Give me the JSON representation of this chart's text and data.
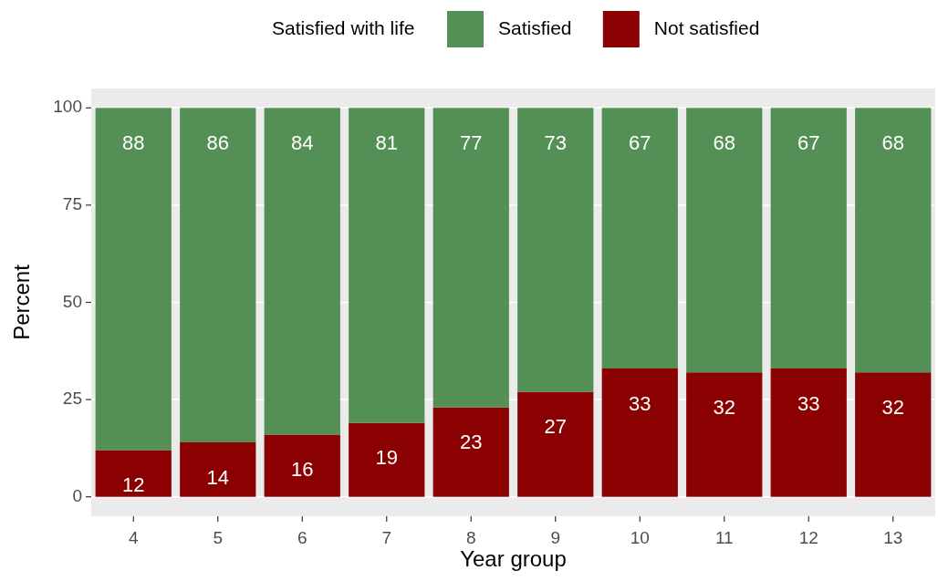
{
  "chart_data": {
    "type": "bar",
    "stacked": true,
    "xlabel": "Year group",
    "ylabel": "Percent",
    "legend_title": "Satisfied with life",
    "legend": "top",
    "categories": [
      "4",
      "5",
      "6",
      "7",
      "8",
      "9",
      "10",
      "11",
      "12",
      "13"
    ],
    "series": [
      {
        "name": "Not satisfied",
        "color": "#8b0000",
        "values": [
          12,
          14,
          16,
          19,
          23,
          27,
          33,
          32,
          33,
          32
        ]
      },
      {
        "name": "Satisfied",
        "color": "#548f55",
        "values": [
          88,
          86,
          84,
          81,
          77,
          73,
          67,
          68,
          67,
          68
        ]
      }
    ],
    "ylim": [
      -5,
      105
    ],
    "yticks": [
      0,
      25,
      50,
      75,
      100
    ],
    "grid": "y",
    "data_labels": true
  }
}
